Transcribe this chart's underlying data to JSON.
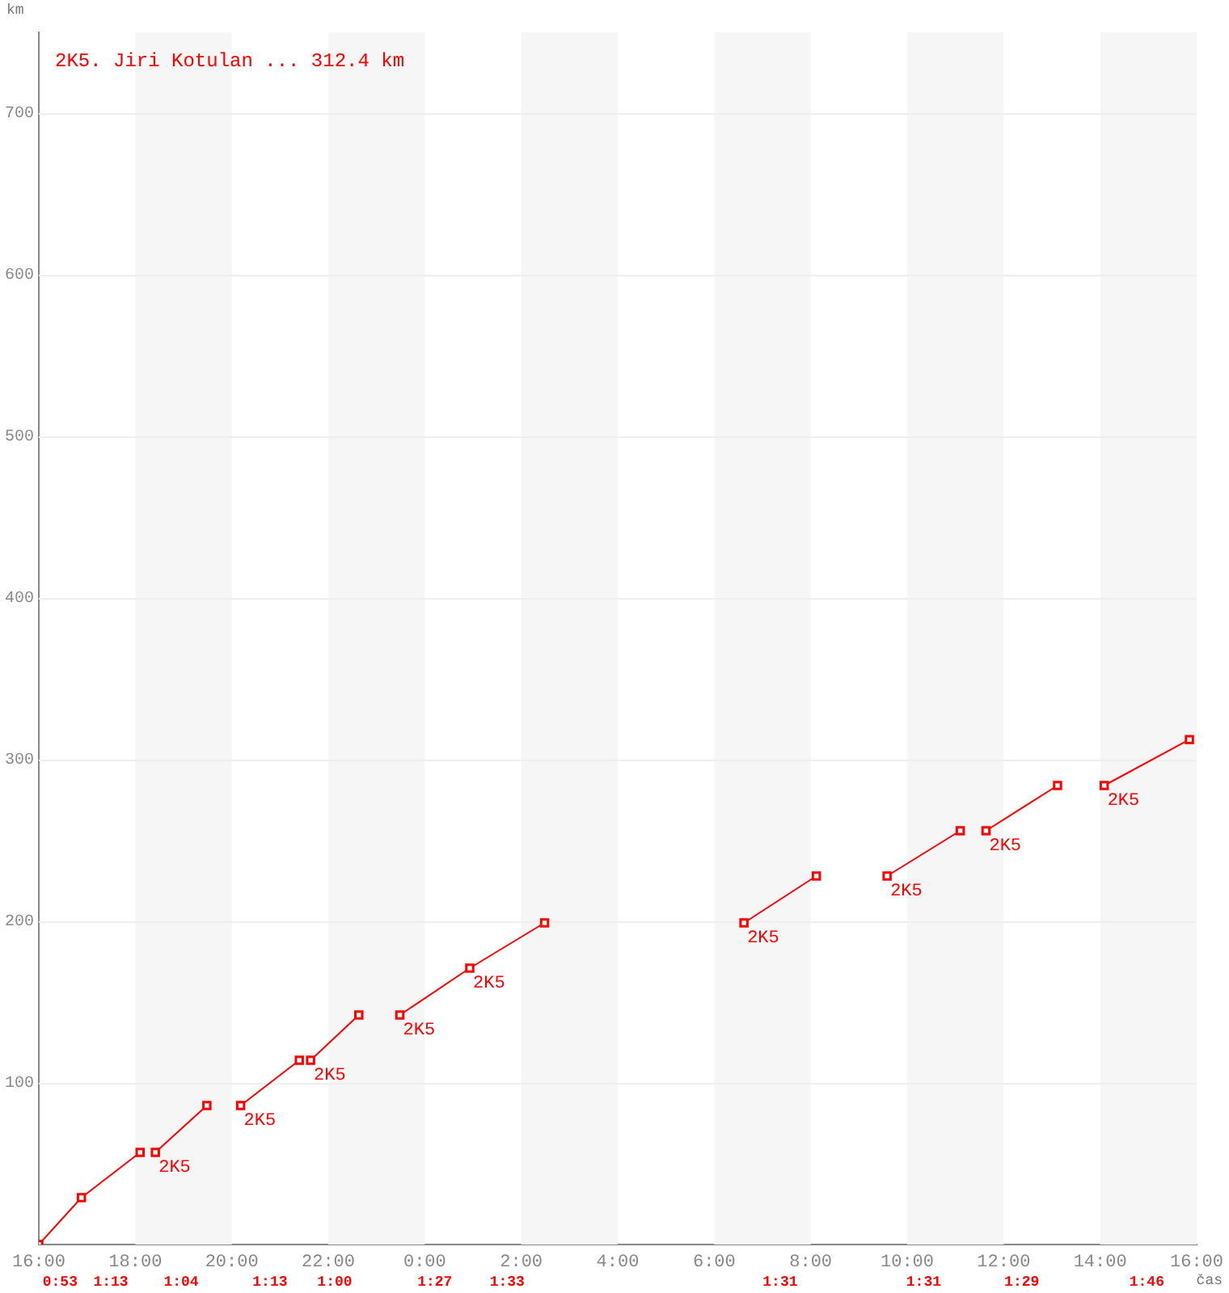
{
  "chart_data": {
    "type": "line",
    "title": "2K5. Jiri Kotulan ... 312.4 km",
    "xlabel": "čas",
    "ylabel": "km",
    "xlim": [
      "2000-01-01T16:00",
      "2000-01-02T16:00"
    ],
    "xticks": [
      {
        "value": "2000-01-01T16:00",
        "label": "16:00"
      },
      {
        "value": "2000-01-01T18:00",
        "label": "18:00"
      },
      {
        "value": "2000-01-01T20:00",
        "label": "20:00"
      },
      {
        "value": "2000-01-01T22:00",
        "label": "22:00"
      },
      {
        "value": "2000-01-02T00:00",
        "label": "0:00"
      },
      {
        "value": "2000-01-02T02:00",
        "label": "2:00"
      },
      {
        "value": "2000-01-02T04:00",
        "label": "4:00"
      },
      {
        "value": "2000-01-02T06:00",
        "label": "6:00"
      },
      {
        "value": "2000-01-02T08:00",
        "label": "8:00"
      },
      {
        "value": "2000-01-02T10:00",
        "label": "10:00"
      },
      {
        "value": "2000-01-02T12:00",
        "label": "12:00"
      },
      {
        "value": "2000-01-02T14:00",
        "label": "14:00"
      },
      {
        "value": "2000-01-02T16:00",
        "label": "16:00"
      }
    ],
    "ylim": [
      0,
      750
    ],
    "yticks": [
      100,
      200,
      300,
      400,
      500,
      600,
      700
    ],
    "grid": "y",
    "marker": "square",
    "line_style": "solid",
    "series": [
      {
        "color": "#ff0000",
        "x": [
          "2000-01-01T16:00",
          "2000-01-01T16:53",
          "2000-01-01T18:06"
        ],
        "values": [
          0,
          29,
          57
        ]
      },
      {
        "color": "#ff0000",
        "x": [
          "2000-01-01T18:25",
          "2000-01-01T19:29"
        ],
        "values": [
          57,
          86
        ]
      },
      {
        "color": "#ff0000",
        "x": [
          "2000-01-01T20:11",
          "2000-01-01T21:24"
        ],
        "values": [
          86,
          114
        ]
      },
      {
        "color": "#ff0000",
        "x": [
          "2000-01-01T21:38",
          "2000-01-01T22:38"
        ],
        "values": [
          114,
          142
        ]
      },
      {
        "color": "#ff0000",
        "x": [
          "2000-01-01T23:29",
          "2000-01-02T00:56",
          "2000-01-02T02:29"
        ],
        "values": [
          142,
          171,
          199
        ]
      },
      {
        "color": "#ff0000",
        "x": [
          "2000-01-02T06:37",
          "2000-01-02T08:07"
        ],
        "values": [
          199,
          228
        ]
      },
      {
        "color": "#ff0000",
        "x": [
          "2000-01-02T09:35",
          "2000-01-02T11:06"
        ],
        "values": [
          228,
          256
        ]
      },
      {
        "color": "#ff0000",
        "x": [
          "2000-01-02T11:38",
          "2000-01-02T13:07"
        ],
        "values": [
          256,
          284
        ]
      },
      {
        "color": "#ff0000",
        "x": [
          "2000-01-02T14:05",
          "2000-01-02T15:51"
        ],
        "values": [
          284,
          312.4
        ]
      }
    ],
    "bands": [
      {
        "axis": "x",
        "from": "2000-01-01T18:00",
        "to": "2000-01-01T20:00",
        "color": "#f6f6f6"
      },
      {
        "axis": "x",
        "from": "2000-01-01T22:00",
        "to": "2000-01-02T00:00",
        "color": "#f6f6f6"
      },
      {
        "axis": "x",
        "from": "2000-01-02T02:00",
        "to": "2000-01-02T04:00",
        "color": "#f6f6f6"
      },
      {
        "axis": "x",
        "from": "2000-01-02T06:00",
        "to": "2000-01-02T08:00",
        "color": "#f6f6f6"
      },
      {
        "axis": "x",
        "from": "2000-01-02T10:00",
        "to": "2000-01-02T12:00",
        "color": "#f6f6f6"
      },
      {
        "axis": "x",
        "from": "2000-01-02T14:00",
        "to": "2000-01-02T16:00",
        "color": "#f6f6f6"
      }
    ],
    "annotations": [
      {
        "text": "2K5",
        "x": "2000-01-01T18:25",
        "y": 57
      },
      {
        "text": "2K5",
        "x": "2000-01-01T20:11",
        "y": 86
      },
      {
        "text": "2K5",
        "x": "2000-01-01T21:38",
        "y": 114
      },
      {
        "text": "2K5",
        "x": "2000-01-01T23:29",
        "y": 142
      },
      {
        "text": "2K5",
        "x": "2000-01-02T00:56",
        "y": 171
      },
      {
        "text": "2K5",
        "x": "2000-01-02T06:37",
        "y": 199
      },
      {
        "text": "2K5",
        "x": "2000-01-02T09:35",
        "y": 228
      },
      {
        "text": "2K5",
        "x": "2000-01-02T11:38",
        "y": 256
      },
      {
        "text": "2K5",
        "x": "2000-01-02T14:05",
        "y": 284
      },
      "0:53",
      "1:13",
      "1:04",
      "1:13",
      "1:00",
      "1:27",
      "1:33",
      "1:31",
      "1:31",
      "1:29",
      "1:46"
    ]
  }
}
